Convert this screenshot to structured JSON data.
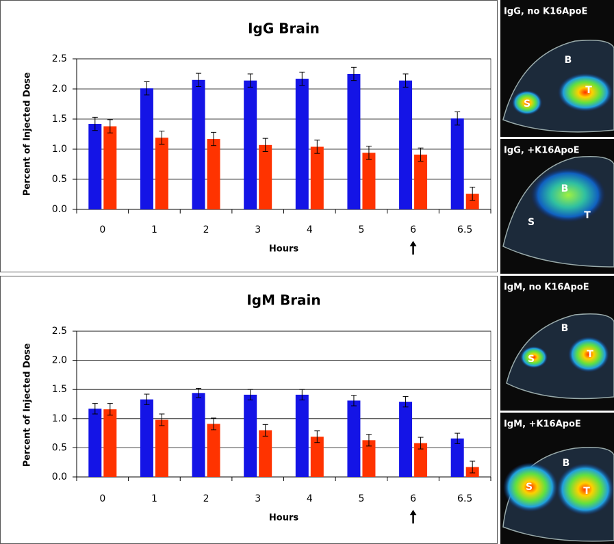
{
  "chart_data": [
    {
      "type": "bar",
      "title": "IgG  Brain",
      "x_label": "Hours",
      "y_label": "Percent  of  Injected  Dose",
      "categories": [
        "0",
        "1",
        "2",
        "3",
        "4",
        "5",
        "6",
        "6.5"
      ],
      "series": [
        {
          "color": "#1414e6",
          "values": [
            1.42,
            2.01,
            2.15,
            2.14,
            2.17,
            2.25,
            2.14,
            1.51
          ],
          "errors": [
            0.11,
            0.11,
            0.11,
            0.11,
            0.11,
            0.11,
            0.11,
            0.11
          ]
        },
        {
          "color": "#ff3300",
          "values": [
            1.38,
            1.19,
            1.17,
            1.07,
            1.04,
            0.94,
            0.91,
            0.26
          ],
          "errors": [
            0.11,
            0.11,
            0.11,
            0.11,
            0.11,
            0.11,
            0.11,
            0.11
          ]
        }
      ],
      "ylim": [
        0,
        2.5
      ],
      "yticks": [
        {
          "value": 0,
          "label": "0.0"
        },
        0.5,
        {
          "value": 1,
          "label": "1.0"
        },
        1.5,
        {
          "value": 2,
          "label": "2.0"
        },
        2.5
      ],
      "grid": true
    },
    {
      "type": "bar",
      "title": "IgM  Brain",
      "x_label": "Hours",
      "y_label": "Percent  of  Injected  Dose",
      "categories": [
        "0",
        "1",
        "2",
        "3",
        "4",
        "5",
        "6",
        "6.5"
      ],
      "series": [
        {
          "color": "#1414e6",
          "values": [
            1.17,
            1.33,
            1.44,
            1.41,
            1.41,
            1.31,
            1.29,
            0.66
          ],
          "errors": [
            0.09,
            0.09,
            0.08,
            0.09,
            0.09,
            0.09,
            0.09,
            0.09
          ]
        },
        {
          "color": "#ff3300",
          "values": [
            1.16,
            0.98,
            0.91,
            0.8,
            0.69,
            0.63,
            0.58,
            0.17
          ],
          "errors": [
            0.1,
            0.1,
            0.1,
            0.1,
            0.1,
            0.1,
            0.1,
            0.1
          ]
        }
      ],
      "ylim": [
        0,
        2.5
      ],
      "yticks": [
        {
          "value": 0,
          "label": "0.0"
        },
        0.5,
        {
          "value": 1,
          "label": "1.0"
        },
        1.5,
        {
          "value": 2,
          "label": "2.0"
        },
        2.5
      ],
      "grid": true
    }
  ],
  "panels": [
    {
      "title": "IgG,  no  K16ApoE",
      "labels": [
        "B",
        "S",
        "T"
      ]
    },
    {
      "title": "IgG,  +K16ApoE",
      "labels": [
        "B",
        "S",
        "T"
      ]
    },
    {
      "title": "IgM,  no  K16ApoE",
      "labels": [
        "B",
        "S",
        "T"
      ]
    },
    {
      "title": "IgM,  +K16ApoE",
      "labels": [
        "B",
        "S",
        "T"
      ]
    }
  ]
}
